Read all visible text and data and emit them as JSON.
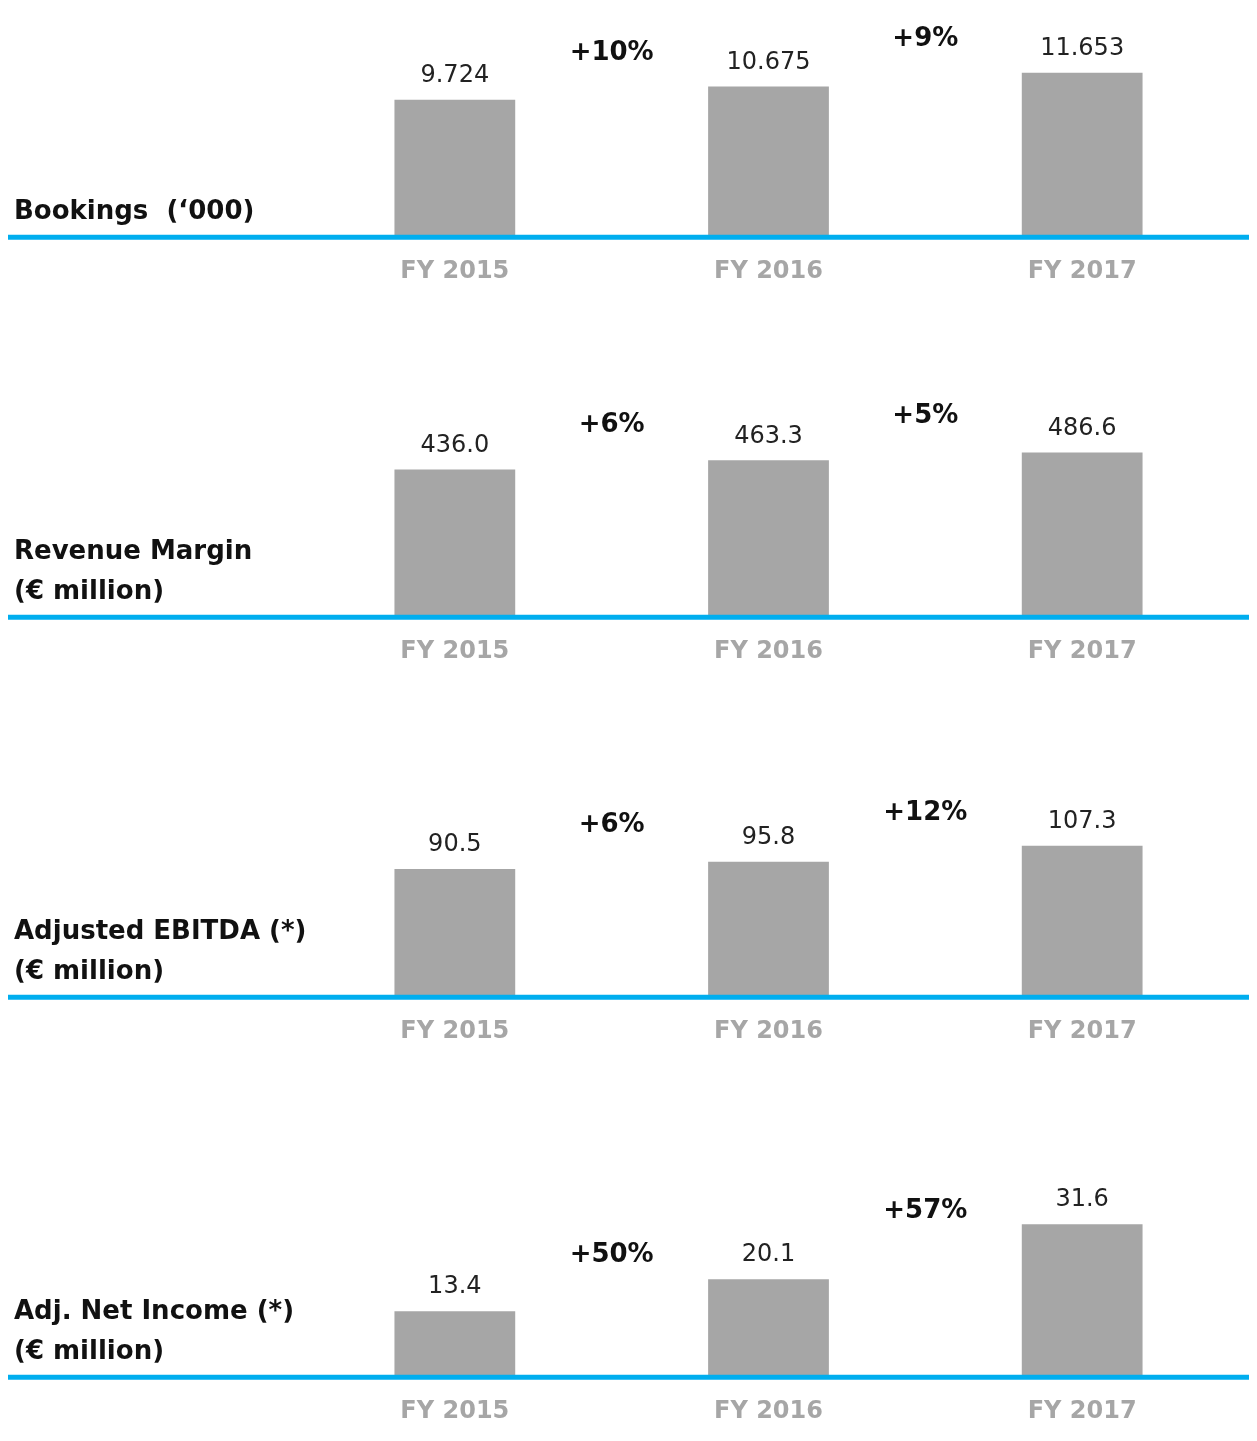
{
  "chart_data": [
    {
      "type": "bar",
      "title": "Bookings  (‘000)",
      "categories": [
        "FY 2015",
        "FY 2016",
        "FY 2017"
      ],
      "values": [
        9.724,
        10.675,
        11.653
      ],
      "value_labels": [
        "9.724",
        "10.675",
        "11.653"
      ],
      "color": "#a6a6a6",
      "annotations": [
        "+10%",
        "+9%"
      ],
      "grid": false,
      "legend": false
    },
    {
      "type": "bar",
      "title": "Revenue Margin",
      "subtitle": "(€ million)",
      "categories": [
        "FY 2015",
        "FY 2016",
        "FY 2017"
      ],
      "values": [
        436.0,
        463.3,
        486.6
      ],
      "value_labels": [
        "436.0",
        "463.3",
        "486.6"
      ],
      "color": "#a6a6a6",
      "annotations": [
        "+6%",
        "+5%"
      ],
      "grid": false,
      "legend": false
    },
    {
      "type": "bar",
      "title": "Adjusted EBITDA (*)",
      "subtitle": "(€ million)",
      "categories": [
        "FY 2015",
        "FY 2016",
        "FY 2017"
      ],
      "values": [
        90.5,
        95.8,
        107.3
      ],
      "value_labels": [
        "90.5",
        "95.8",
        "107.3"
      ],
      "color": "#a6a6a6",
      "annotations": [
        "+6%",
        "+12%"
      ],
      "grid": false,
      "legend": false
    },
    {
      "type": "bar",
      "title": "Adj. Net Income (*)",
      "subtitle": "(€ million)",
      "categories": [
        "FY 2015",
        "FY 2016",
        "FY 2017"
      ],
      "values": [
        13.4,
        20.1,
        31.6
      ],
      "value_labels": [
        "13.4",
        "20.1",
        "31.6"
      ],
      "color": "#a6a6a6",
      "annotations": [
        "+50%",
        "+57%"
      ],
      "grid": false,
      "legend": false
    }
  ]
}
